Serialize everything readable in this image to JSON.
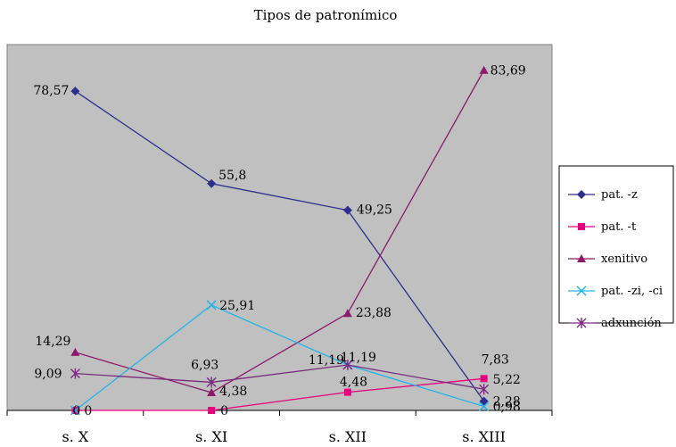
{
  "chart_data": {
    "type": "line",
    "title": "Tipos de patronímico",
    "xlabel": "",
    "ylabel": "",
    "categories": [
      "s. X",
      "s. XI",
      "s. XII",
      "s. XIII"
    ],
    "ylim": [
      0,
      90
    ],
    "grid": false,
    "legend_position": "right",
    "plot_background": "#c0c0c0",
    "series": [
      {
        "name": "pat. -z",
        "color": "#2e2e8c",
        "marker": "diamond",
        "values": [
          78.57,
          55.8,
          49.25,
          2.28
        ],
        "labels": [
          "78,57",
          "55,8",
          "49,25",
          "2,28"
        ]
      },
      {
        "name": "pat. -t",
        "color": "#e6007e",
        "marker": "square",
        "values": [
          0,
          0,
          4.48,
          7.83
        ],
        "labels": [
          "0",
          "0",
          "4,48",
          "7,83"
        ]
      },
      {
        "name": "xenitivo",
        "color": "#8b1a6b",
        "marker": "triangle",
        "values": [
          14.29,
          4.38,
          23.88,
          83.69
        ],
        "labels": [
          "14,29",
          "4,38",
          "23,88",
          "83,69"
        ]
      },
      {
        "name": "pat. -zi, -ci",
        "color": "#22b4e6",
        "marker": "x",
        "values": [
          0,
          25.91,
          11.19,
          0.98
        ],
        "labels": [
          "0",
          "25,91",
          "11,19",
          "0,98"
        ]
      },
      {
        "name": "adxunción",
        "color": "#7a2a80",
        "marker": "star",
        "values": [
          9.09,
          6.93,
          11.19,
          5.22
        ],
        "labels": [
          "9,09",
          "6,93",
          "11,19",
          "5,22"
        ]
      }
    ]
  }
}
